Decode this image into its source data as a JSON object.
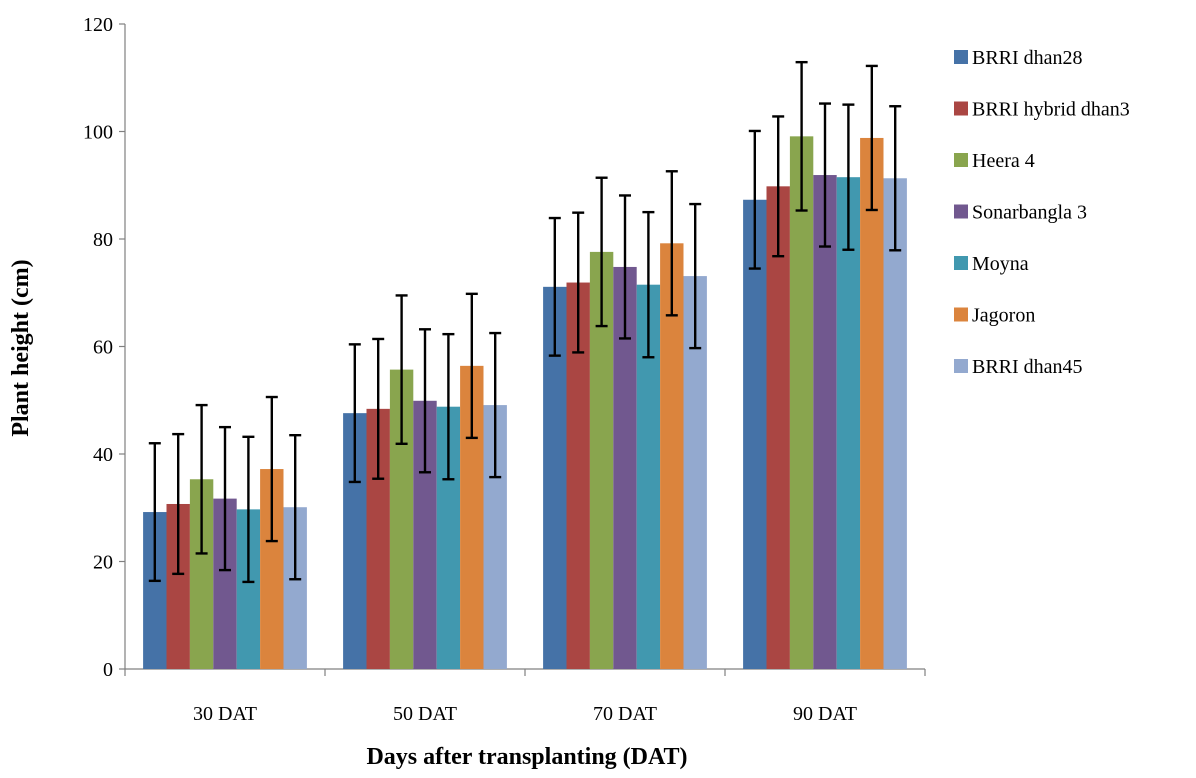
{
  "chart_data": {
    "type": "bar",
    "xlabel": "Days after transplanting (DAT)",
    "ylabel": "Plant height (cm)",
    "ylim": [
      0,
      120
    ],
    "yticks": [
      0,
      20,
      40,
      60,
      80,
      100,
      120
    ],
    "grid": false,
    "legend_position": "right",
    "categories": [
      "30 DAT",
      "50 DAT",
      "70 DAT",
      "90 DAT"
    ],
    "series": [
      {
        "name": "BRRI dhan28",
        "color": "#4572A7",
        "values": [
          29.2,
          47.6,
          71.1,
          87.3
        ],
        "errors": [
          12.8,
          12.8,
          12.8,
          12.8
        ]
      },
      {
        "name": "BRRI hybrid dhan3",
        "color": "#AA4643",
        "values": [
          30.7,
          48.4,
          71.9,
          89.8
        ],
        "errors": [
          13.0,
          13.0,
          13.0,
          13.0
        ]
      },
      {
        "name": "Heera 4",
        "color": "#89A54E",
        "values": [
          35.3,
          55.7,
          77.6,
          99.1
        ],
        "errors": [
          13.8,
          13.8,
          13.8,
          13.8
        ]
      },
      {
        "name": "Sonarbangla 3",
        "color": "#71588F",
        "values": [
          31.7,
          49.9,
          74.8,
          91.9
        ],
        "errors": [
          13.3,
          13.3,
          13.3,
          13.3
        ]
      },
      {
        "name": "Moyna",
        "color": "#4198AF",
        "values": [
          29.7,
          48.8,
          71.5,
          91.5
        ],
        "errors": [
          13.5,
          13.5,
          13.5,
          13.5
        ]
      },
      {
        "name": "Jagoron",
        "color": "#DB843D",
        "values": [
          37.2,
          56.4,
          79.2,
          98.8
        ],
        "errors": [
          13.4,
          13.4,
          13.4,
          13.4
        ]
      },
      {
        "name": "BRRI dhan45",
        "color": "#93A9CF",
        "values": [
          30.1,
          49.1,
          73.1,
          91.3
        ],
        "errors": [
          13.4,
          13.4,
          13.4,
          13.4
        ]
      }
    ]
  }
}
